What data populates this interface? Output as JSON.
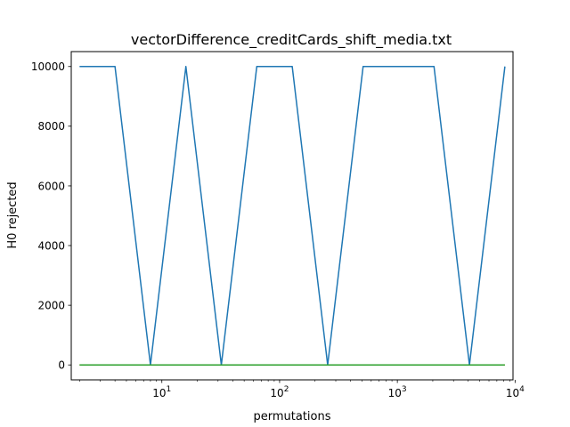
{
  "chart_data": {
    "type": "line",
    "title": "vectorDifference_creditCards_shift_media.txt",
    "xlabel": "permutations",
    "ylabel": "H0 rejected",
    "xscale": "log",
    "xlim": [
      1.7,
      9600
    ],
    "ylim": [
      -500,
      10500
    ],
    "grid": false,
    "legend": "none",
    "x_ticks": [
      {
        "base": "10",
        "exp": "1",
        "value": 10
      },
      {
        "base": "10",
        "exp": "2",
        "value": 100
      },
      {
        "base": "10",
        "exp": "3",
        "value": 1000
      },
      {
        "base": "10",
        "exp": "4",
        "value": 10000
      }
    ],
    "y_ticks": [
      0,
      2000,
      4000,
      6000,
      8000,
      10000
    ],
    "series": [
      {
        "color": "#1f77b4",
        "x": [
          2,
          4,
          8,
          16,
          32,
          64,
          128,
          256,
          512,
          1024,
          2048,
          4096,
          8192
        ],
        "y": [
          10000,
          10000,
          0,
          10000,
          0,
          10000,
          10000,
          0,
          10000,
          10000,
          10000,
          0,
          10000
        ]
      },
      {
        "color": "#ff7f0e",
        "x": [
          2,
          4,
          8,
          16,
          32,
          64,
          128,
          256,
          512,
          1024,
          2048,
          4096,
          8192
        ],
        "y": [
          0,
          0,
          0,
          0,
          0,
          0,
          0,
          0,
          0,
          0,
          0,
          0,
          0
        ]
      },
      {
        "color": "#2ca02c",
        "x": [
          2,
          4,
          8,
          16,
          32,
          64,
          128,
          256,
          512,
          1024,
          2048,
          4096,
          8192
        ],
        "y": [
          0,
          0,
          0,
          0,
          0,
          0,
          0,
          0,
          0,
          0,
          0,
          0,
          0
        ]
      }
    ]
  }
}
